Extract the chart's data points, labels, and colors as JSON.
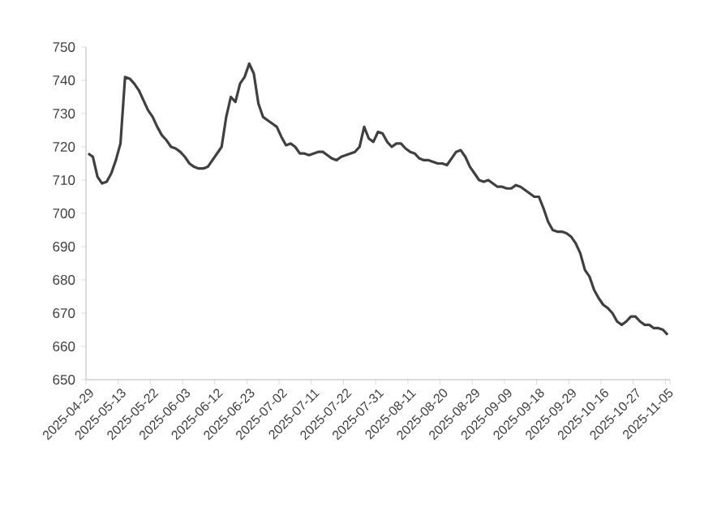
{
  "chart_data": {
    "type": "line",
    "categories": [
      "2025-04-29",
      null,
      null,
      null,
      null,
      null,
      null,
      "2025-05-13",
      null,
      null,
      null,
      null,
      null,
      null,
      "2025-05-22",
      null,
      null,
      null,
      null,
      null,
      null,
      "2025-06-03",
      null,
      null,
      null,
      null,
      null,
      null,
      "2025-06-12",
      null,
      null,
      null,
      null,
      null,
      null,
      "2025-06-23",
      null,
      null,
      null,
      null,
      null,
      null,
      "2025-07-02",
      null,
      null,
      null,
      null,
      null,
      null,
      "2025-07-11",
      null,
      null,
      null,
      null,
      null,
      null,
      "2025-07-22",
      null,
      null,
      null,
      null,
      null,
      null,
      "2025-07-31",
      null,
      null,
      null,
      null,
      null,
      null,
      "2025-08-11",
      null,
      null,
      null,
      null,
      null,
      null,
      "2025-08-20",
      null,
      null,
      null,
      null,
      null,
      null,
      "2025-08-29",
      null,
      null,
      null,
      null,
      null,
      null,
      "2025-09-09",
      null,
      null,
      null,
      null,
      null,
      null,
      "2025-09-18",
      null,
      null,
      null,
      null,
      null,
      null,
      "2025-09-29",
      null,
      null,
      null,
      null,
      null,
      null,
      "2025-10-16",
      null,
      null,
      null,
      null,
      null,
      null,
      "2025-10-27",
      null,
      null,
      null,
      null,
      null,
      null,
      "2025-11-05"
    ],
    "series": [
      {
        "color": "#404040",
        "values": [
          718,
          717,
          711,
          709,
          709.5,
          712,
          716,
          721,
          741,
          740.5,
          739,
          737,
          734,
          731,
          729,
          726,
          723.5,
          722,
          720,
          719.5,
          718.5,
          717,
          715,
          714,
          713.5,
          713.5,
          714,
          716,
          718,
          720,
          729,
          735,
          733.5,
          739,
          741,
          745,
          742,
          733,
          729,
          728,
          727,
          726,
          723,
          720.5,
          721,
          720,
          718,
          718,
          717.5,
          718,
          718.5,
          718.5,
          717.5,
          716.5,
          716,
          717,
          717.5,
          718,
          718.5,
          720,
          726,
          722.5,
          721.5,
          724.5,
          724,
          721.5,
          720,
          721,
          721,
          719.5,
          718.5,
          718,
          716.5,
          716,
          716,
          715.5,
          715,
          715,
          714.5,
          716.5,
          718.5,
          719,
          717,
          714,
          712,
          710,
          709.5,
          710,
          709,
          708,
          708,
          707.5,
          707.5,
          708.5,
          708,
          707,
          706,
          705,
          705,
          701.5,
          697.5,
          695,
          694.5,
          694.5,
          694,
          693,
          691,
          688,
          683,
          681,
          677,
          674.5,
          672.5,
          671.5,
          670,
          667.5,
          666.5,
          667.5,
          669,
          669,
          667.5,
          666.5,
          666.5,
          665.5,
          665.5,
          665,
          663.5
        ]
      }
    ],
    "ylim": [
      650,
      750
    ],
    "yticks": [
      650,
      660,
      670,
      680,
      690,
      700,
      710,
      720,
      730,
      740,
      750
    ],
    "grid": false,
    "marker": "none",
    "line_style": "solid"
  }
}
